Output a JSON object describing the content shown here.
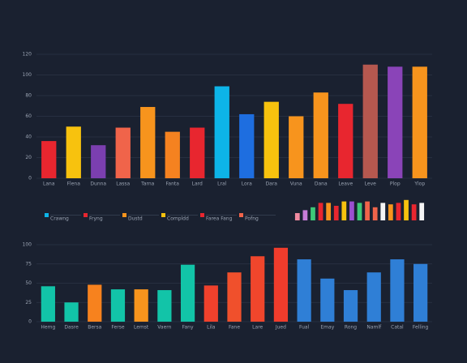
{
  "chart_data": [
    {
      "type": "bar",
      "categories": [
        "Lana",
        "Flena",
        "Dunna",
        "Lassa",
        "Tarna",
        "Fanta",
        "Lard",
        "Lral",
        "Lora",
        "Dara",
        "Vuna",
        "Dana",
        "Leave",
        "Leve",
        "Plop",
        "Ylop"
      ],
      "values": [
        36,
        50,
        32,
        49,
        69,
        45,
        49,
        89,
        62,
        74,
        60,
        83,
        72,
        110,
        108,
        108
      ],
      "colors": [
        "#e8262f",
        "#f7c20e",
        "#7b3fb0",
        "#f0644a",
        "#f7941d",
        "#f58220",
        "#e8262f",
        "#0db4e8",
        "#1e6ee0",
        "#f7c20e",
        "#f7941d",
        "#f7941d",
        "#e8262f",
        "#b5584f",
        "#8a44b8",
        "#f7941d"
      ],
      "ylim": [
        0,
        120
      ],
      "yticks": [
        0,
        20,
        40,
        60,
        80,
        100,
        120
      ],
      "grid": true
    },
    {
      "type": "bar",
      "categories": [
        "Hemg",
        "Dasre",
        "Bersa",
        "Ferse",
        "Lemst",
        "Vaern",
        "Fany",
        "Lila",
        "Fane",
        "Lare",
        "Jued",
        "Fual",
        "Emay",
        "Rong",
        "Namlf",
        "Catal",
        "Felling"
      ],
      "values": [
        46,
        25,
        48,
        42,
        42,
        41,
        74,
        47,
        64,
        85,
        96,
        81,
        56,
        41,
        64,
        81,
        75
      ],
      "colors": [
        "#12c4a8",
        "#12c4a8",
        "#f7821e",
        "#12c4a8",
        "#f7941d",
        "#12c4a8",
        "#12c4a8",
        "#f0412c",
        "#f0502c",
        "#f0462c",
        "#f03c2c",
        "#2f7fd6",
        "#2f7fd6",
        "#2f7fd6",
        "#2f7fd6",
        "#2f7fd6",
        "#2f7fd6"
      ],
      "ylim": [
        0,
        100
      ],
      "yticks": [
        0,
        25,
        50,
        75,
        100
      ],
      "grid": true
    },
    {
      "type": "bar",
      "values": [
        10,
        14,
        18,
        24,
        24,
        20,
        26,
        26,
        24,
        26,
        18,
        24,
        22,
        24,
        28,
        22,
        24
      ],
      "colors": [
        "#f08aa0",
        "#c87cd8",
        "#3ec878",
        "#e8262f",
        "#f7941d",
        "#e8262f",
        "#f7c20e",
        "#9b4fd0",
        "#3ec878",
        "#f0644a",
        "#f0644a",
        "#f5f5f5",
        "#f7941d",
        "#e8262f",
        "#f7c20e",
        "#e8262f",
        "#f5f5f5"
      ],
      "ylim": [
        0,
        30
      ]
    }
  ],
  "legend": {
    "items": [
      {
        "label": "Crawng",
        "color": "#0db4e8"
      },
      {
        "label": "Fryng",
        "color": "#e8262f"
      },
      {
        "label": "Dustd",
        "color": "#f7941d"
      },
      {
        "label": "Compldd",
        "color": "#f7c20e"
      },
      {
        "label": "Farea Fang",
        "color": "#e8262f"
      },
      {
        "label": "Pofng",
        "color": "#f0644a"
      }
    ]
  }
}
